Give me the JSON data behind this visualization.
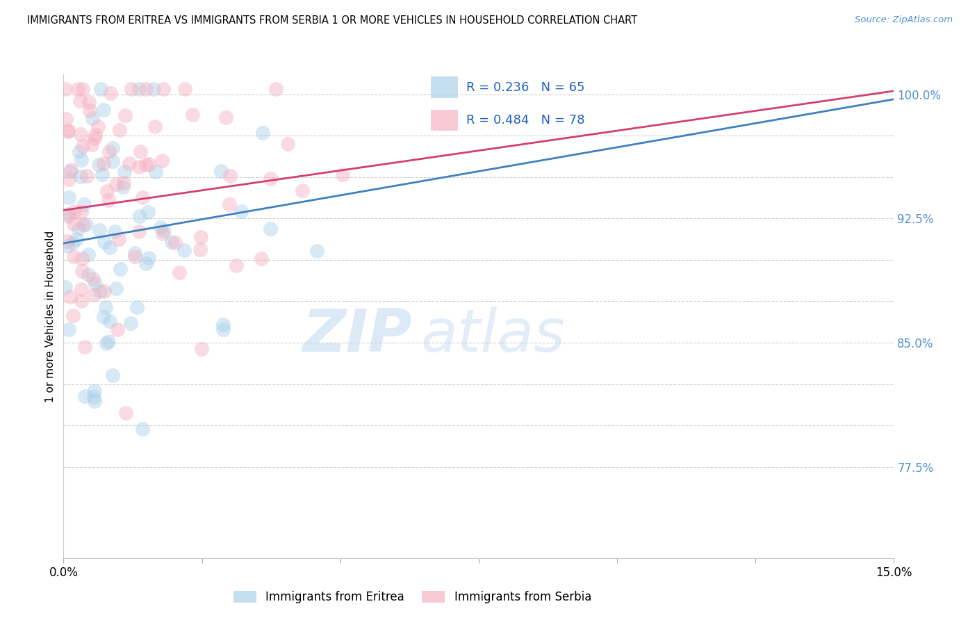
{
  "title": "IMMIGRANTS FROM ERITREA VS IMMIGRANTS FROM SERBIA 1 OR MORE VEHICLES IN HOUSEHOLD CORRELATION CHART",
  "source": "Source: ZipAtlas.com",
  "ylabel": "1 or more Vehicles in Household",
  "xmin": 0.0,
  "xmax": 0.15,
  "ymin": 0.72,
  "ymax": 1.012,
  "yticks": [
    0.775,
    0.8,
    0.825,
    0.85,
    0.875,
    0.9,
    0.925,
    0.95,
    0.975,
    1.0
  ],
  "ytick_labels": [
    "77.5%",
    "",
    "",
    "85.0%",
    "",
    "",
    "92.5%",
    "",
    "",
    "100.0%"
  ],
  "xticks": [
    0.0,
    0.025,
    0.05,
    0.075,
    0.1,
    0.125,
    0.15
  ],
  "xtick_labels": [
    "0.0%",
    "",
    "",
    "",
    "",
    "",
    "15.0%"
  ],
  "R_eritrea": 0.236,
  "N_eritrea": 65,
  "R_serbia": 0.484,
  "N_serbia": 78,
  "blue_color": "#a8cfe8",
  "pink_color": "#f4aec0",
  "blue_line_color": "#4080c0",
  "pink_line_color": "#d04070",
  "label_eritrea": "Immigrants from Eritrea",
  "label_serbia": "Immigrants from Serbia",
  "watermark_zip": "ZIP",
  "watermark_atlas": "atlas",
  "axis_label_color": "#5090d0",
  "title_fontsize": 10.5,
  "source_fontsize": 9.5,
  "legend_text_color": "#2060c0",
  "blue_line_y0": 0.91,
  "blue_line_y1": 0.997,
  "pink_line_y0": 0.93,
  "pink_line_y1": 1.002
}
